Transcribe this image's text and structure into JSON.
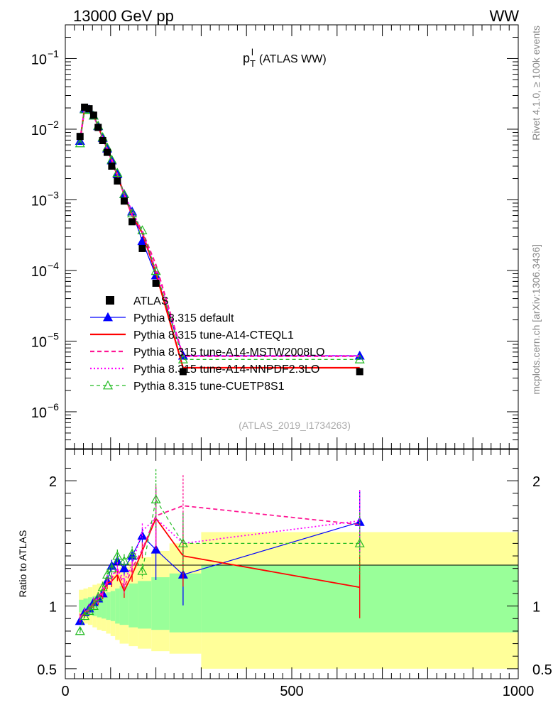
{
  "header": {
    "left": "13000 GeV pp",
    "right": "WW"
  },
  "side_labels": {
    "rivet": "Rivet 4.1.0, ≥ 100k events",
    "mcplots": "mcplots.cern.ch [arXiv:1306.3436]"
  },
  "colors": {
    "atlas": "#000000",
    "default": "#0000ff",
    "cteq": "#ff0000",
    "mstw": "#ff1493",
    "nnpdf": "#ff00ff",
    "cuetp8": "#22bb22",
    "band_inner": "#99ff99",
    "band_outer": "#ffff99"
  },
  "chart_data": [
    {
      "type": "line",
      "title_main": "p",
      "title_sup": "l",
      "title_sub": "T",
      "title_rest": "(ATLAS WW)",
      "analysis_label": "(ATLAS_2019_I1734263)",
      "xlim": [
        0,
        1000
      ],
      "ylim": [
        3e-07,
        0.3
      ],
      "yscale": "log",
      "y_ticks": [
        {
          "v": 1e-06,
          "exp": "−6"
        },
        {
          "v": 1e-05,
          "exp": "−5"
        },
        {
          "v": 0.0001,
          "exp": "−4"
        },
        {
          "v": 0.001,
          "exp": "−3"
        },
        {
          "v": 0.01,
          "exp": "−2"
        },
        {
          "v": 0.1,
          "exp": "−1"
        }
      ],
      "x": [
        32.5,
        42.5,
        52.5,
        62.5,
        72.5,
        82.5,
        92.5,
        102.5,
        115,
        130,
        147.5,
        170,
        200,
        260,
        650
      ],
      "series": [
        {
          "name": "ATLAS",
          "values": [
            0.0079,
            0.0205,
            0.0195,
            0.0158,
            0.0106,
            0.0069,
            0.0047,
            0.003,
            0.00185,
            0.00096,
            0.00049,
            0.000205,
            6.6e-05,
            3.7e-06,
            3.7e-06
          ]
        },
        {
          "name": "Pythia 8.315 default",
          "values": [
            0.0068,
            0.0195,
            0.019,
            0.0155,
            0.011,
            0.0075,
            0.0053,
            0.0036,
            0.0023,
            0.0012,
            0.00068,
            0.00026,
            8.5e-05,
            6.2e-06,
            6.2e-06
          ]
        },
        {
          "name": "Pythia 8.315 tune-A14-CTEQL1",
          "values": [
            0.0068,
            0.0195,
            0.019,
            0.0155,
            0.011,
            0.0075,
            0.0053,
            0.0036,
            0.0022,
            0.0012,
            0.0006,
            0.00034,
            9.2e-05,
            4.2e-06,
            4.2e-06
          ]
        },
        {
          "name": "Pythia 8.315 tune-A14-MSTW2008LO",
          "values": [
            0.0068,
            0.0195,
            0.019,
            0.0155,
            0.011,
            0.0075,
            0.0053,
            0.0037,
            0.0023,
            0.0012,
            0.0006,
            0.00036,
            0.00012,
            6.1e-06,
            6.1e-06
          ]
        },
        {
          "name": "Pythia 8.315 tune-A14-NNPDF2.3LO",
          "values": [
            0.0068,
            0.0195,
            0.019,
            0.0155,
            0.011,
            0.0075,
            0.0053,
            0.0037,
            0.0023,
            0.0012,
            0.0007,
            0.00035,
            0.0001,
            6.2e-06,
            6.2e-06
          ]
        },
        {
          "name": "Pythia 8.315 tune-CUETP8S1",
          "values": [
            0.0063,
            0.019,
            0.0186,
            0.0155,
            0.0112,
            0.0077,
            0.0055,
            0.0037,
            0.0024,
            0.0012,
            0.00064,
            0.00037,
            9.8e-05,
            5.5e-06,
            5.5e-06
          ]
        }
      ],
      "legend_position": "lower-left"
    },
    {
      "type": "line",
      "ylabel": "Ratio to ATLAS",
      "xlim": [
        0,
        1000
      ],
      "ylim": [
        0.42,
        2.25
      ],
      "x_tick_labels": [
        "0",
        "500",
        "1000"
      ],
      "x_ticks": [
        0,
        500,
        1000
      ],
      "y_tick_labels": [
        "0.5",
        "1",
        "2"
      ],
      "y_ticks": [
        0.5,
        1,
        2
      ],
      "x_edges": [
        30,
        40,
        50,
        60,
        70,
        80,
        90,
        100,
        110,
        120,
        140,
        160,
        190,
        230,
        300,
        1000
      ],
      "band_inner": [
        [
          0.95,
          1.05
        ],
        [
          0.93,
          1.06
        ],
        [
          0.93,
          1.07
        ],
        [
          0.92,
          1.08
        ],
        [
          0.91,
          1.09
        ],
        [
          0.9,
          1.1
        ],
        [
          0.89,
          1.11
        ],
        [
          0.88,
          1.12
        ],
        [
          0.86,
          1.14
        ],
        [
          0.85,
          1.16
        ],
        [
          0.83,
          1.18
        ],
        [
          0.82,
          1.2
        ],
        [
          0.81,
          1.23
        ],
        [
          0.79,
          1.26
        ],
        [
          0.79,
          1.33
        ]
      ],
      "band_outer": [
        [
          0.88,
          1.13
        ],
        [
          0.86,
          1.14
        ],
        [
          0.85,
          1.15
        ],
        [
          0.83,
          1.17
        ],
        [
          0.81,
          1.18
        ],
        [
          0.8,
          1.2
        ],
        [
          0.78,
          1.23
        ],
        [
          0.76,
          1.25
        ],
        [
          0.73,
          1.28
        ],
        [
          0.7,
          1.31
        ],
        [
          0.68,
          1.35
        ],
        [
          0.66,
          1.39
        ],
        [
          0.64,
          1.44
        ],
        [
          0.62,
          1.5
        ],
        [
          0.5,
          1.59
        ]
      ],
      "x": [
        32.5,
        42.5,
        52.5,
        62.5,
        72.5,
        82.5,
        92.5,
        102.5,
        115,
        130,
        147.5,
        170,
        200,
        260,
        650
      ],
      "series": [
        {
          "name": "Pythia 8.315 default",
          "values": [
            0.88,
            0.95,
            0.98,
            1.03,
            1.06,
            1.1,
            1.2,
            1.32,
            1.36,
            1.3,
            1.4,
            1.56,
            1.45,
            1.25,
            1.67
          ]
        },
        {
          "name": "Pythia 8.315 tune-A14-CTEQL1",
          "values": [
            0.9,
            0.94,
            0.97,
            1.02,
            1.05,
            1.1,
            1.18,
            1.2,
            1.25,
            1.12,
            1.25,
            1.44,
            1.7,
            1.4,
            1.15
          ]
        },
        {
          "name": "Pythia 8.315 tune-A14-MSTW2008LO",
          "values": [
            0.91,
            0.95,
            0.98,
            1.03,
            1.07,
            1.12,
            1.2,
            1.22,
            1.3,
            1.15,
            1.3,
            1.45,
            1.72,
            1.8,
            1.65
          ]
        },
        {
          "name": "Pythia 8.315 tune-A14-NNPDF2.3LO",
          "values": [
            0.9,
            0.95,
            0.97,
            1.03,
            1.06,
            1.11,
            1.2,
            1.24,
            1.3,
            1.2,
            1.33,
            1.6,
            1.7,
            1.5,
            1.68
          ]
        },
        {
          "name": "Pythia 8.315 tune-CUETP8S1",
          "values": [
            0.8,
            0.92,
            0.96,
            1.0,
            1.07,
            1.15,
            1.25,
            1.3,
            1.4,
            1.36,
            1.42,
            1.28,
            1.85,
            1.5,
            1.5
          ]
        }
      ]
    }
  ]
}
